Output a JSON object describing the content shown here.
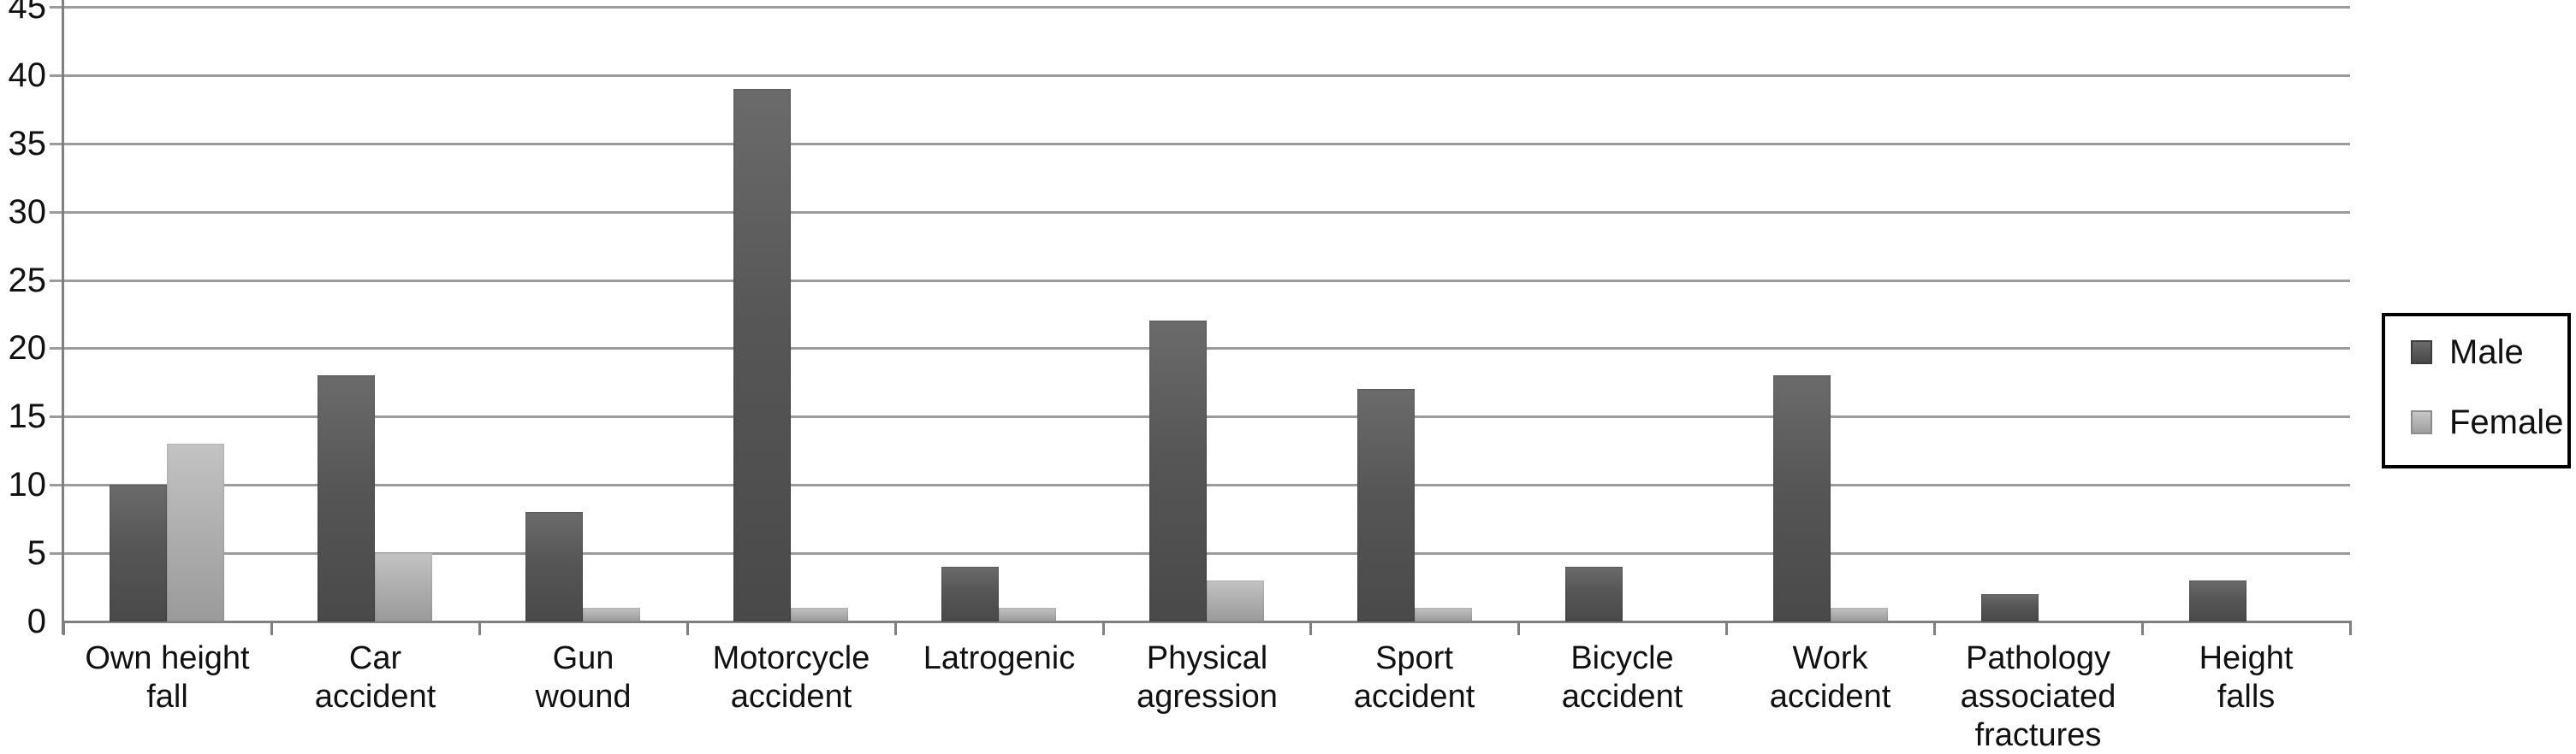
{
  "chart_data": {
    "type": "bar",
    "title": "",
    "xlabel": "",
    "ylabel": "",
    "categories": [
      "Own height fall",
      "Car accident",
      "Gun wound",
      "Motorcycle accident",
      "Latrogenic",
      "Physical agression",
      "Sport accident",
      "Bicycle accident",
      "Work accident",
      "Pathology associated fractures",
      "Height falls"
    ],
    "xtick_labels": [
      "Own height\nfall",
      "Car\naccident",
      "Gun\nwound",
      "Motorcycle\naccident",
      "Latrogenic",
      "Physical\nagression",
      "Sport\naccident",
      "Bicycle\naccident",
      "Work\naccident",
      "Pathology\nassociated\nfractures",
      "Height\nfalls"
    ],
    "series": [
      {
        "name": "Male",
        "values": [
          10,
          18,
          8,
          39,
          4,
          22,
          17,
          4,
          18,
          2,
          3
        ]
      },
      {
        "name": "Female",
        "values": [
          13,
          5,
          1,
          1,
          1,
          3,
          1,
          0,
          1,
          0,
          0
        ]
      }
    ],
    "ylim": [
      0,
      45
    ],
    "ytick_step": 5,
    "yticks": [
      0,
      5,
      10,
      15,
      20,
      25,
      30,
      35,
      40,
      45
    ],
    "grid": true,
    "legend_position": "right"
  },
  "legend": {
    "items": [
      {
        "label": "Male",
        "swatch": "dark-gray-square"
      },
      {
        "label": "Female",
        "swatch": "light-gray-square"
      }
    ]
  },
  "colors": {
    "background": "#ffffff",
    "male_bar": "#565656",
    "female_bar": "#b0b0b0",
    "gridline": "#9b9b9b",
    "axis": "#7f7f7f",
    "text": "#111111",
    "legend_border": "#000000"
  }
}
